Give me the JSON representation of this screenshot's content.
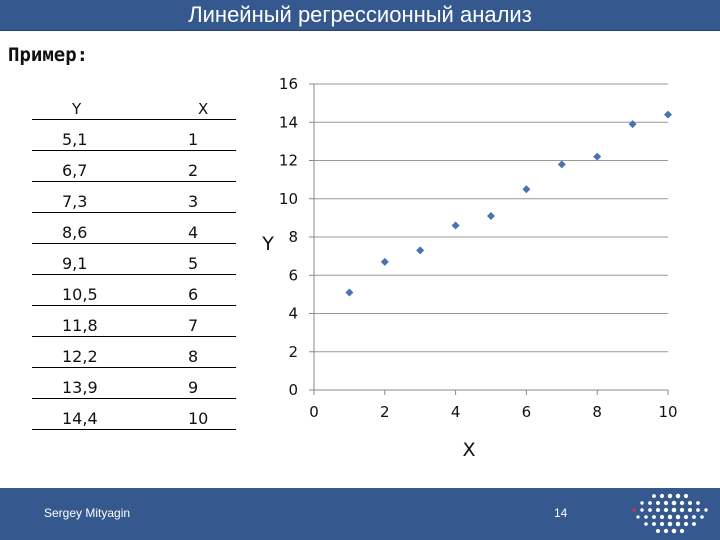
{
  "slide": {
    "title": "Линейный регрессионный анализ",
    "example_label": "Пример:"
  },
  "table": {
    "headers": [
      "Y",
      "X"
    ],
    "rows": [
      [
        "5,1",
        "1"
      ],
      [
        "6,7",
        "2"
      ],
      [
        "7,3",
        "3"
      ],
      [
        "8,6",
        "4"
      ],
      [
        "9,1",
        "5"
      ],
      [
        "10,5",
        "6"
      ],
      [
        "11,8",
        "7"
      ],
      [
        "12,2",
        "8"
      ],
      [
        "13,9",
        "9"
      ],
      [
        "14,4",
        "10"
      ]
    ]
  },
  "chart_data": {
    "type": "scatter",
    "x": [
      1,
      2,
      3,
      4,
      5,
      6,
      7,
      8,
      9,
      10
    ],
    "y": [
      5.1,
      6.7,
      7.3,
      8.6,
      9.1,
      10.5,
      11.8,
      12.2,
      13.9,
      14.4
    ],
    "xlabel": "X",
    "ylabel": "Y",
    "xlim": [
      0,
      10
    ],
    "ylim": [
      0,
      16
    ],
    "x_ticks": [
      "0",
      "2",
      "4",
      "6",
      "8",
      "10"
    ],
    "y_ticks": [
      "0",
      "2",
      "4",
      "6",
      "8",
      "10",
      "12",
      "14",
      "16"
    ],
    "grid": "horizontal",
    "marker": "diamond",
    "marker_color": "#4a73b0"
  },
  "footer": {
    "author": "Sergey Mityagin",
    "page_number": "14"
  },
  "colors": {
    "bar": "#35598f",
    "logo_accent": "#e03030"
  }
}
